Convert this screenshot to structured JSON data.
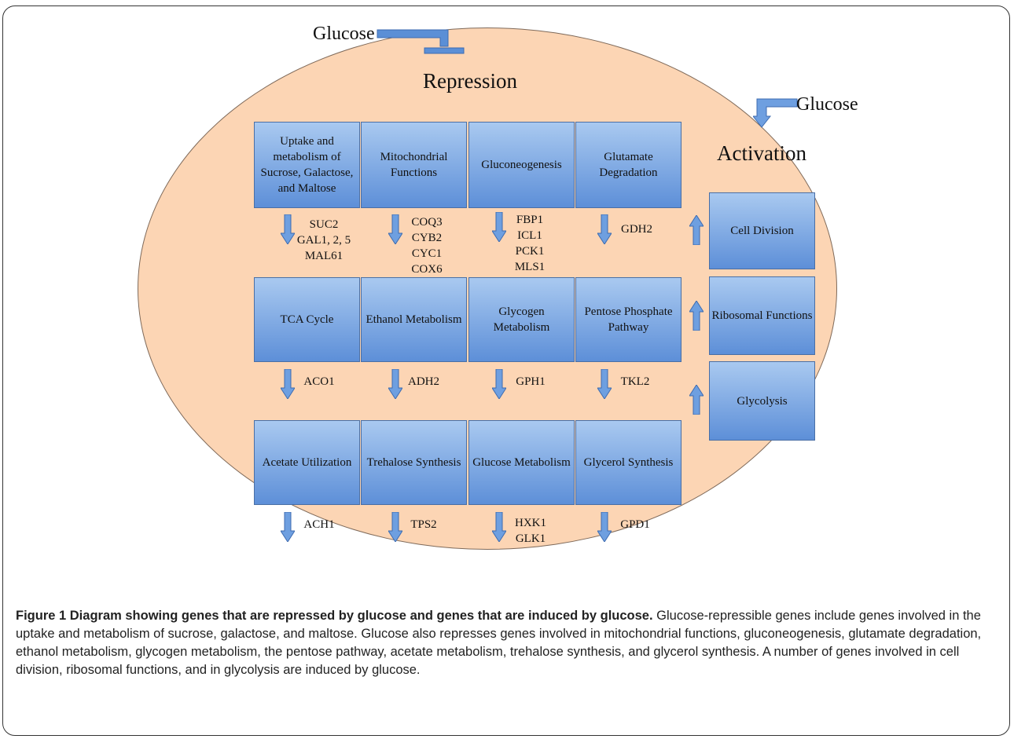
{
  "labels": {
    "glucose_top": "Glucose",
    "glucose_right": "Glucose",
    "repression": "Repression",
    "activation": "Activation"
  },
  "repressed_pathways": [
    {
      "name": "Uptake and metabolism of Sucrose, Galactose, and Maltose",
      "genes": [
        "SUC2",
        "GAL1, 2, 5",
        "MAL61"
      ]
    },
    {
      "name": "Mitochondrial Functions",
      "genes": [
        "COQ3",
        "CYB2",
        "CYC1",
        "COX6"
      ]
    },
    {
      "name": "Gluconeogenesis",
      "genes": [
        "FBP1",
        "ICL1",
        "PCK1",
        "MLS1"
      ]
    },
    {
      "name": "Glutamate Degradation",
      "genes": [
        "GDH2"
      ]
    },
    {
      "name": "TCA Cycle",
      "genes": [
        "ACO1"
      ]
    },
    {
      "name": "Ethanol Metabolism",
      "genes": [
        "ADH2"
      ]
    },
    {
      "name": "Glycogen Metabolism",
      "genes": [
        "GPH1"
      ]
    },
    {
      "name": "Pentose Phosphate Pathway",
      "genes": [
        "TKL2"
      ]
    },
    {
      "name": "Acetate Utilization",
      "genes": [
        "ACH1"
      ]
    },
    {
      "name": "Trehalose Synthesis",
      "genes": [
        "TPS2"
      ]
    },
    {
      "name": "Glucose Metabolism",
      "genes": [
        "HXK1",
        "GLK1"
      ]
    },
    {
      "name": "Glycerol Synthesis",
      "genes": [
        "GPD1"
      ]
    }
  ],
  "activated_pathways": [
    {
      "name": "Cell Division"
    },
    {
      "name": "Ribosomal Functions"
    },
    {
      "name": "Glycolysis"
    }
  ],
  "caption": {
    "title": "Figure 1 Diagram showing genes that are repressed by glucose and genes that are induced by glucose.",
    "text": "Glucose-repressible genes include genes involved in the uptake and metabolism of sucrose, galactose, and maltose. Glucose also represses genes involved in mitochondrial functions, gluconeogenesis, glutamate degradation, ethanol metabolism, glycogen metabolism, the pentose pathway, acetate metabolism, trehalose synthesis, and glycerol synthesis. A number of genes involved in cell division, ribosomal functions, and in glycolysis are induced by glucose."
  },
  "colors": {
    "cell_fill": "#fcd5b4",
    "box_top": "#a9c9f0",
    "box_bottom": "#5d8fd8",
    "arrow": "#6e9fe0"
  }
}
